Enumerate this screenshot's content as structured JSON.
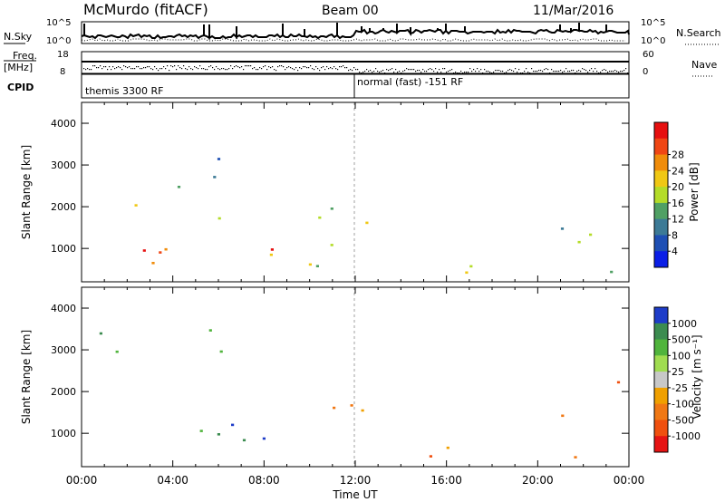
{
  "header": {
    "station": "McMurdo (fitACF)",
    "beam": "Beam 00",
    "date": "11/Mar/2016"
  },
  "mini_panels": {
    "nsky": {
      "label": "N.Sky",
      "right_label": "N.Search",
      "left_ticks": [
        "10^5",
        "10^0"
      ],
      "right_ticks": [
        "10^5",
        "10^0"
      ]
    },
    "freq": {
      "label_line1": "Freq.",
      "label_line2": "[MHz]",
      "right_label": "Nave",
      "left_ticks": [
        "18",
        "8"
      ],
      "right_ticks": [
        "60",
        "0"
      ]
    },
    "cpid": {
      "label": "CPID",
      "modes": [
        "themis 3300 RF",
        "normal (fast) -151 RF"
      ]
    }
  },
  "chart_data": [
    {
      "type": "heatmap",
      "panel": "power",
      "ylabel": "Slant Range [km]",
      "y_ticks": [
        "1000",
        "2000",
        "3000",
        "4000"
      ],
      "ylim": [
        200,
        4500
      ],
      "xlim_hours": [
        0,
        24
      ],
      "colorbar_label": "Power [dB]",
      "colorbar_ticks": [
        "4",
        "8",
        "12",
        "16",
        "20",
        "24",
        "28"
      ],
      "colorbar_colors": [
        "#0a1ee6",
        "#1e4fb4",
        "#3c7a96",
        "#50a064",
        "#b4dc28",
        "#f0c814",
        "#f08c0a",
        "#f04614",
        "#e60f0f"
      ],
      "scatter_regions": [
        {
          "t": [
            0.2,
            12.5
          ],
          "r": [
            250,
            2300
          ],
          "level": 0.55
        },
        {
          "t": [
            1.0,
            8.5
          ],
          "r": [
            650,
            1400
          ],
          "level": 0.85
        },
        {
          "t": [
            0.2,
            7.0
          ],
          "r": [
            2400,
            3500
          ],
          "level": 0.3
        },
        {
          "t": [
            12.5,
            23.8
          ],
          "r": [
            250,
            750
          ],
          "level": 0.6
        },
        {
          "t": [
            17.0,
            19.5
          ],
          "r": [
            300,
            650
          ],
          "level": 0.9
        },
        {
          "t": [
            21.0,
            24.0
          ],
          "r": [
            900,
            3000
          ],
          "level": 0.4
        }
      ]
    },
    {
      "type": "heatmap",
      "panel": "velocity",
      "ylabel": "Slant Range [km]",
      "y_ticks": [
        "1000",
        "2000",
        "3000",
        "4000"
      ],
      "ylim": [
        200,
        4500
      ],
      "xlim_hours": [
        0,
        24
      ],
      "x_ticks": [
        "00:00",
        "04:00",
        "08:00",
        "12:00",
        "16:00",
        "20:00",
        "00:00"
      ],
      "xlabel": "Time UT",
      "colorbar_label": "Velocity [m s⁻¹]",
      "colorbar_ticks": [
        "1000",
        "500",
        "100",
        "25",
        "-25",
        "-100",
        "-500",
        "-1000"
      ],
      "colorbar_colors": [
        "#1e3cc8",
        "#3c8c50",
        "#50b43c",
        "#a0dc50",
        "#c8c8c8",
        "#f0a000",
        "#f07814",
        "#f0500f",
        "#e61414"
      ],
      "scatter_regions": [
        {
          "t": [
            0.3,
            10.5
          ],
          "r": [
            600,
            1500
          ],
          "vel": 500
        },
        {
          "t": [
            6.7,
            8.0
          ],
          "r": [
            700,
            1700
          ],
          "vel": 1000
        },
        {
          "t": [
            8.0,
            12.7
          ],
          "r": [
            600,
            2200
          ],
          "vel": -500
        },
        {
          "t": [
            0.2,
            7.0
          ],
          "r": [
            2300,
            3500
          ],
          "vel": 100
        },
        {
          "t": [
            12.5,
            23.8
          ],
          "r": [
            250,
            750
          ],
          "vel": -500
        },
        {
          "t": [
            21.0,
            24.0
          ],
          "r": [
            900,
            2600
          ],
          "vel": -500
        }
      ]
    }
  ],
  "colors": {
    "axis": "#000000",
    "background": "#ffffff",
    "gridline_dash": "#a0a0a0"
  }
}
